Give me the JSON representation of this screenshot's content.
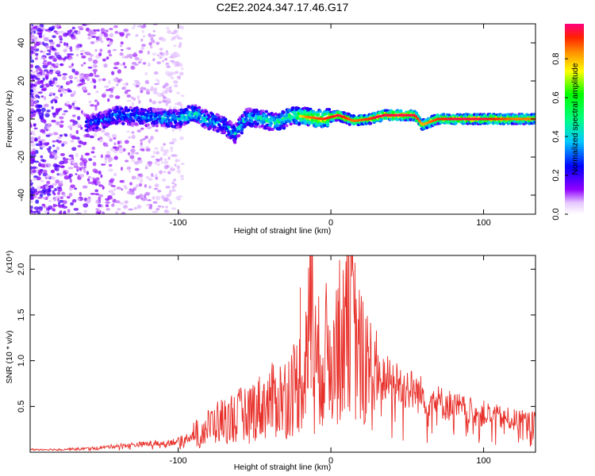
{
  "title": "C2E2.2024.347.17.46.G17",
  "chart_data": [
    {
      "type": "heatmap",
      "xlabel": "Height of straight line (km)",
      "ylabel": "Frequency (Hz)",
      "xlim": [
        -197,
        134
      ],
      "ylim": [
        -50,
        50
      ],
      "xticks": [
        {
          "v": -100,
          "label": "-100"
        },
        {
          "v": 0,
          "label": "0"
        },
        {
          "v": 100,
          "label": "100"
        }
      ],
      "yticks": [
        {
          "v": -40,
          "label": "-40"
        },
        {
          "v": -20,
          "label": "-20"
        },
        {
          "v": 0,
          "label": "0"
        },
        {
          "v": 20,
          "label": "20"
        },
        {
          "v": 40,
          "label": "40"
        }
      ],
      "colorbar": {
        "label": "Normalized spectral amplitude",
        "range": [
          0,
          0.98
        ],
        "ticks": [
          {
            "v": 0.0,
            "label": "0.0"
          },
          {
            "v": 0.2,
            "label": "0.2"
          },
          {
            "v": 0.4,
            "label": "0.4"
          },
          {
            "v": 0.6,
            "label": "0.6"
          },
          {
            "v": 0.8,
            "label": "0.8"
          }
        ]
      },
      "ridge": {
        "x": [
          -155,
          -140,
          -120,
          -100,
          -90,
          -80,
          -70,
          -63,
          -55,
          -45,
          -35,
          -25,
          -15,
          -5,
          5,
          15,
          25,
          35,
          45,
          55,
          60,
          70,
          80,
          90,
          100,
          110,
          120,
          134
        ],
        "freq": [
          -2,
          2,
          1,
          0,
          3,
          -1,
          -3,
          -8,
          1,
          0,
          -2,
          2,
          1,
          0,
          2,
          -1,
          0,
          2,
          2,
          2,
          -3,
          0,
          0,
          0,
          0,
          0,
          0,
          0
        ],
        "amplitude": [
          0.3,
          0.35,
          0.35,
          0.4,
          0.45,
          0.4,
          0.35,
          0.4,
          0.4,
          0.45,
          0.5,
          0.55,
          0.75,
          0.8,
          0.85,
          0.75,
          0.8,
          0.9,
          0.9,
          0.85,
          0.7,
          0.8,
          0.85,
          0.85,
          0.85,
          0.8,
          0.75,
          0.75
        ]
      }
    },
    {
      "type": "line",
      "xlabel": "Height of straight line (km)",
      "ylabel": "SNR (10 * v/v)",
      "scale_label": "(x10⁴)",
      "xlim": [
        -197,
        134
      ],
      "ylim": [
        0,
        2.15
      ],
      "xticks": [
        {
          "v": -100,
          "label": "-100"
        },
        {
          "v": 0,
          "label": "0"
        },
        {
          "v": 100,
          "label": "100"
        }
      ],
      "yticks": [
        {
          "v": 0.5,
          "label": "0.5"
        },
        {
          "v": 1.0,
          "label": "1.0"
        },
        {
          "v": 1.5,
          "label": "1.5"
        },
        {
          "v": 2.0,
          "label": "2.0"
        }
      ],
      "series": [
        {
          "color": "#e8302a",
          "x": [
            -197,
            -180,
            -160,
            -150,
            -140,
            -130,
            -120,
            -110,
            -100,
            -95,
            -90,
            -85,
            -80,
            -75,
            -70,
            -65,
            -60,
            -55,
            -50,
            -45,
            -40,
            -35,
            -30,
            -25,
            -20,
            -15,
            -13,
            -10,
            -5,
            0,
            5,
            8,
            10,
            15,
            20,
            25,
            30,
            40,
            50,
            60,
            70,
            80,
            90,
            100,
            110,
            120,
            134
          ],
          "y": [
            0.03,
            0.03,
            0.04,
            0.05,
            0.07,
            0.08,
            0.09,
            0.1,
            0.12,
            0.15,
            0.2,
            0.22,
            0.28,
            0.33,
            0.35,
            0.38,
            0.4,
            0.45,
            0.48,
            0.5,
            0.55,
            0.58,
            0.62,
            0.7,
            0.8,
            1.0,
            2.15,
            0.95,
            1.05,
            1.1,
            1.2,
            1.25,
            1.95,
            1.3,
            1.0,
            0.9,
            0.8,
            0.78,
            0.7,
            0.62,
            0.55,
            0.5,
            0.45,
            0.42,
            0.38,
            0.35,
            0.33
          ]
        }
      ]
    }
  ]
}
